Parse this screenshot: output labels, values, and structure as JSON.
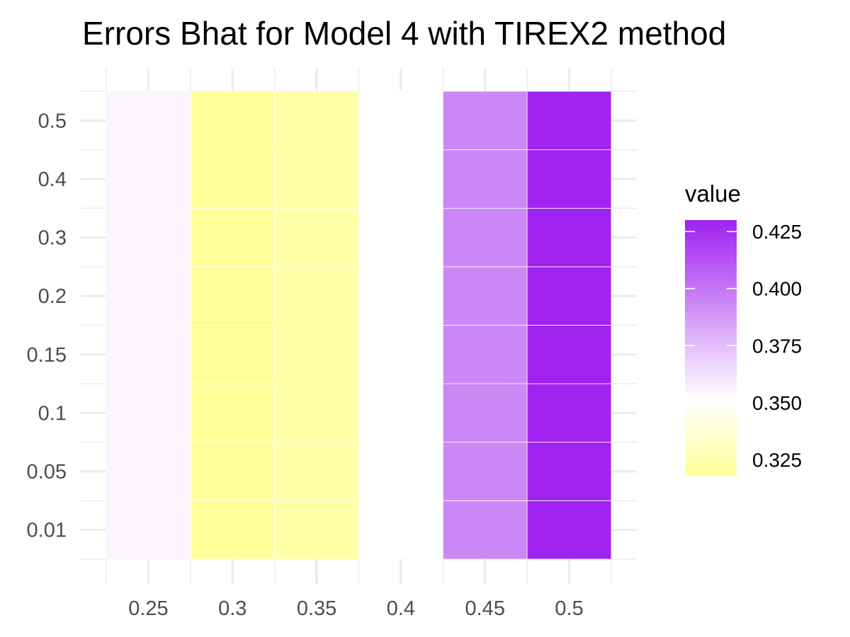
{
  "chart_data": {
    "type": "heatmap",
    "title": "Errors Bhat for Model 4 with TIREX2 method",
    "x_categories": [
      "0.25",
      "0.3",
      "0.35",
      "0.4",
      "0.45",
      "0.5"
    ],
    "y_categories": [
      "0.01",
      "0.05",
      "0.1",
      "0.15",
      "0.2",
      "0.3",
      "0.4",
      "0.5"
    ],
    "values_by_column": [
      [
        0.356,
        0.356,
        0.356,
        0.356,
        0.356,
        0.356,
        0.356,
        0.356
      ],
      [
        0.318,
        0.318,
        0.318,
        0.318,
        0.318,
        0.318,
        0.318,
        0.318
      ],
      [
        0.322,
        0.322,
        0.322,
        0.322,
        0.322,
        0.322,
        0.322,
        0.322
      ],
      [
        0.352,
        0.352,
        0.352,
        0.352,
        0.352,
        0.352,
        0.352,
        0.352
      ],
      [
        0.394,
        0.394,
        0.394,
        0.394,
        0.394,
        0.394,
        0.394,
        0.394
      ],
      [
        0.429,
        0.429,
        0.429,
        0.429,
        0.429,
        0.429,
        0.429,
        0.429
      ]
    ],
    "legend": {
      "title": "value",
      "ticks": [
        0.325,
        0.35,
        0.375,
        0.4,
        0.425
      ],
      "tick_labels": [
        "0.325",
        "0.350",
        "0.375",
        "0.400",
        "0.425"
      ],
      "range": [
        0.318,
        0.43
      ],
      "placement": "right"
    },
    "color_scale": {
      "low": "#ffff99",
      "mid": "#ffffff",
      "high": "#a020f0",
      "midpoint": 0.352
    },
    "grid": true
  }
}
